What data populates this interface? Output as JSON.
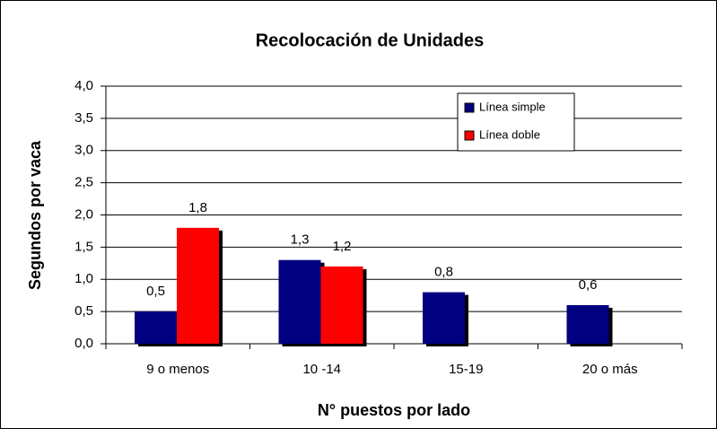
{
  "chart_data": {
    "type": "bar",
    "title": "Recolocación de Unidades",
    "x_label": "N° puestos por lado",
    "y_label": "Segundos por vaca",
    "categories": [
      "9 o menos",
      "10 -14",
      "15-19",
      "20 o más"
    ],
    "series": [
      {
        "name": "Línea simple",
        "color": "#000080",
        "values": [
          0.5,
          1.3,
          0.8,
          0.6
        ],
        "value_labels": [
          "0,5",
          "1,3",
          "0,8",
          "0,6"
        ]
      },
      {
        "name": "Línea doble",
        "color": "#ff0000",
        "values": [
          1.8,
          1.2,
          null,
          null
        ],
        "value_labels": [
          "1,8",
          "1,2",
          null,
          null
        ]
      }
    ],
    "ylim": [
      0,
      4
    ],
    "yticks": [
      {
        "value": 0,
        "label": "0,0"
      },
      {
        "value": 0.5,
        "label": "0,5"
      },
      {
        "value": 1,
        "label": "1,0"
      },
      {
        "value": 1.5,
        "label": "1,5"
      },
      {
        "value": 2,
        "label": "2,0"
      },
      {
        "value": 2.5,
        "label": "2,5"
      },
      {
        "value": 3,
        "label": "3,0"
      },
      {
        "value": 3.5,
        "label": "3,5"
      },
      {
        "value": 4,
        "label": "4,0"
      }
    ],
    "grid": true,
    "legend": "upper right"
  }
}
